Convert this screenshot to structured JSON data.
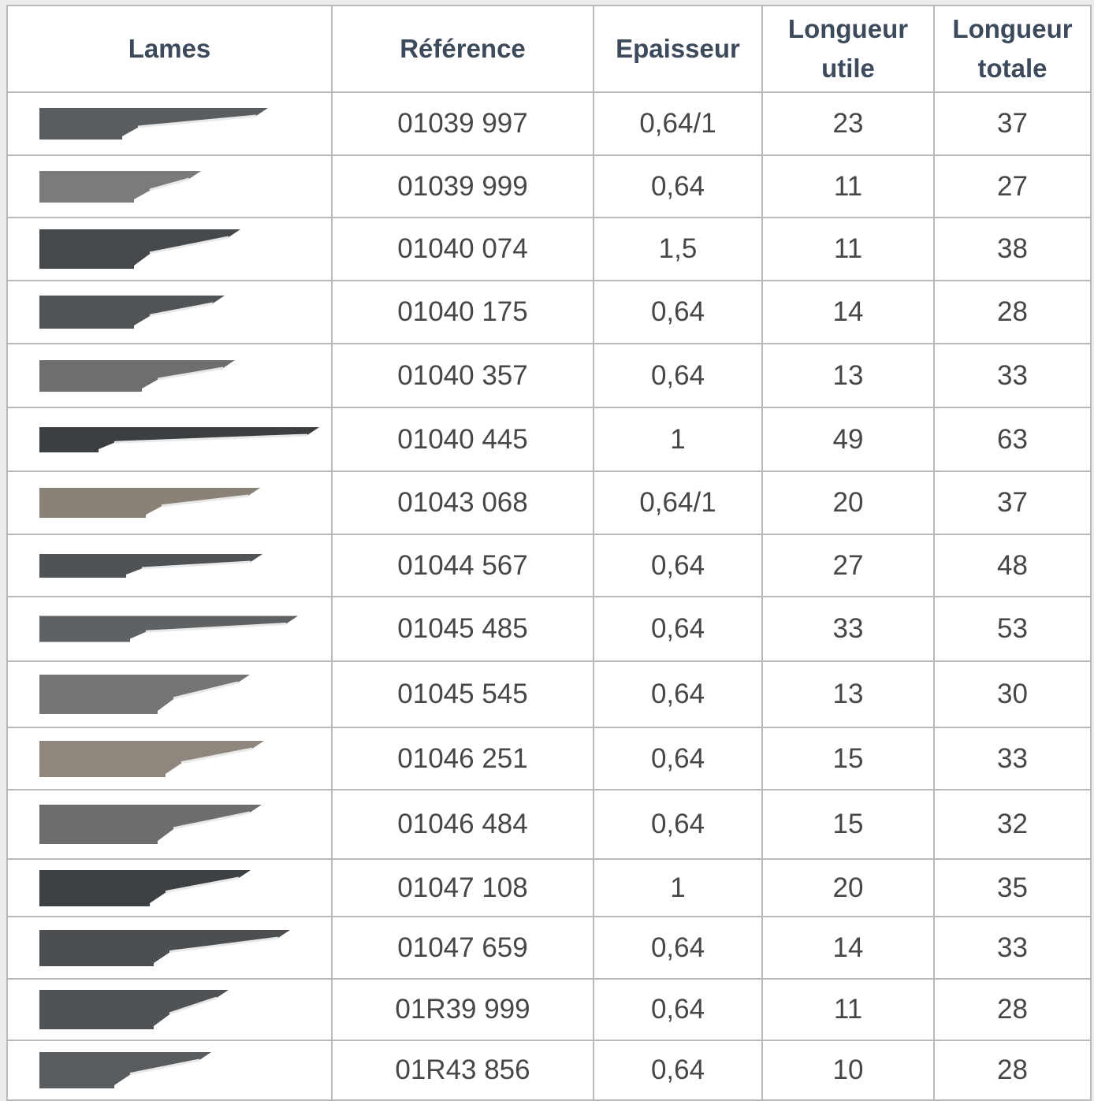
{
  "table": {
    "header": [
      "Lames",
      "Référence",
      "Epaisseur",
      "Longueur utile",
      "Longueur totale"
    ],
    "rows": [
      [
        "01039 997",
        "0,64/1",
        "23",
        "37"
      ],
      [
        "01039 999",
        "0,64",
        "11",
        "27"
      ],
      [
        "01040 074",
        "1,5",
        "11",
        "38"
      ],
      [
        "01040 175",
        "0,64",
        "14",
        "28"
      ],
      [
        "01040 357",
        "0,64",
        "13",
        "33"
      ],
      [
        "01040 445",
        "1",
        "49",
        "63"
      ],
      [
        "01043 068",
        "0,64/1",
        "20",
        "37"
      ],
      [
        "01044 567",
        "0,64",
        "27",
        "48"
      ],
      [
        "01045 485",
        "0,64",
        "33",
        "53"
      ],
      [
        "01045 545",
        "0,64",
        "13",
        "30"
      ],
      [
        "01046 251",
        "0,64",
        "15",
        "33"
      ],
      [
        "01046 484",
        "0,64",
        "15",
        "32"
      ],
      [
        "01047 108",
        "1",
        "20",
        "35"
      ],
      [
        "01047 659",
        "0,64",
        "14",
        "33"
      ],
      [
        "01R39 999",
        "0,64",
        "11",
        "28"
      ],
      [
        "01R43 856",
        "0,64",
        "10",
        "28"
      ]
    ]
  }
}
